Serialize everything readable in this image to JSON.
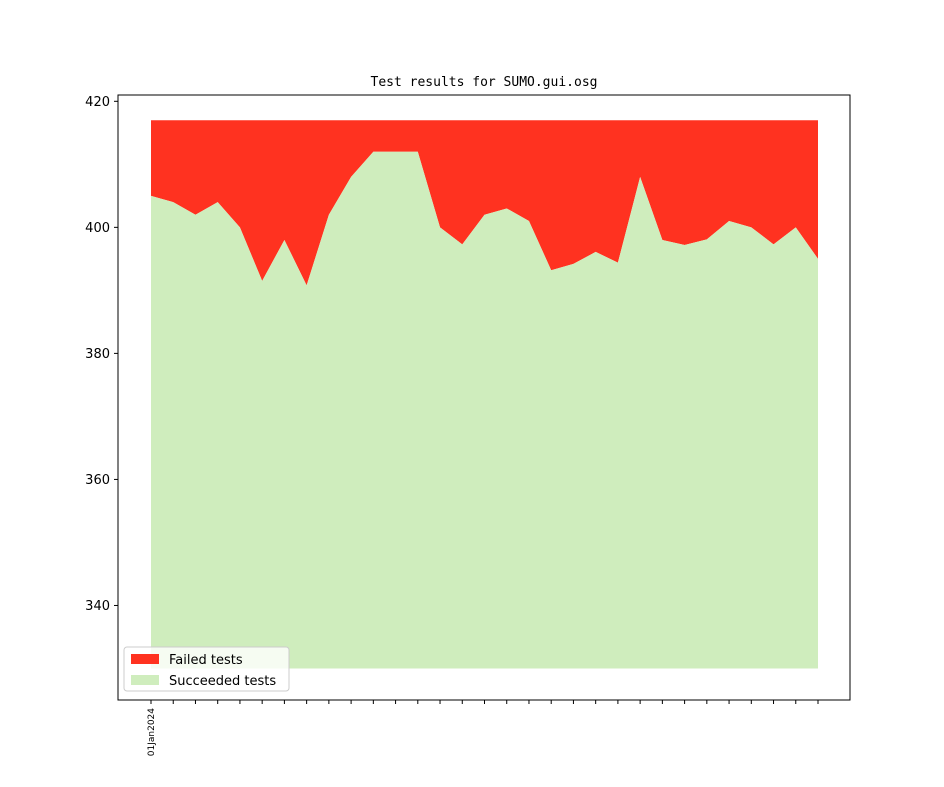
{
  "chart_data": {
    "type": "area",
    "title": "Test results for SUMO.gui.osg",
    "xlabel": "",
    "ylabel": "",
    "x_tick_labels": [
      "01Jan2024"
    ],
    "num_points": 31,
    "ylim": [
      325,
      421
    ],
    "yticks": [
      340,
      360,
      380,
      400,
      420
    ],
    "grid": false,
    "legend_position": "lower-left",
    "colors": {
      "failed": "#ff3220",
      "succeeded": "#cfedbd"
    },
    "legend": [
      "Failed tests",
      "Succeeded tests"
    ],
    "baseline": 330,
    "series": [
      {
        "name": "Failed tests",
        "values": [
          417,
          417,
          417,
          417,
          417,
          417,
          417,
          417,
          417,
          417,
          417,
          417,
          417,
          417,
          417,
          417,
          417,
          417,
          417,
          417,
          417,
          417,
          417,
          417,
          417,
          417,
          417,
          417,
          417,
          417,
          417
        ]
      },
      {
        "name": "Succeeded tests",
        "values": [
          405,
          404,
          402,
          404,
          400,
          391.5,
          398,
          390.8,
          402,
          408,
          412,
          412,
          412,
          400,
          397.3,
          402,
          403,
          401,
          393.2,
          394.2,
          396.1,
          394.4,
          408,
          398,
          397.2,
          398.1,
          401,
          400,
          397.3,
          400,
          395
        ]
      }
    ]
  }
}
